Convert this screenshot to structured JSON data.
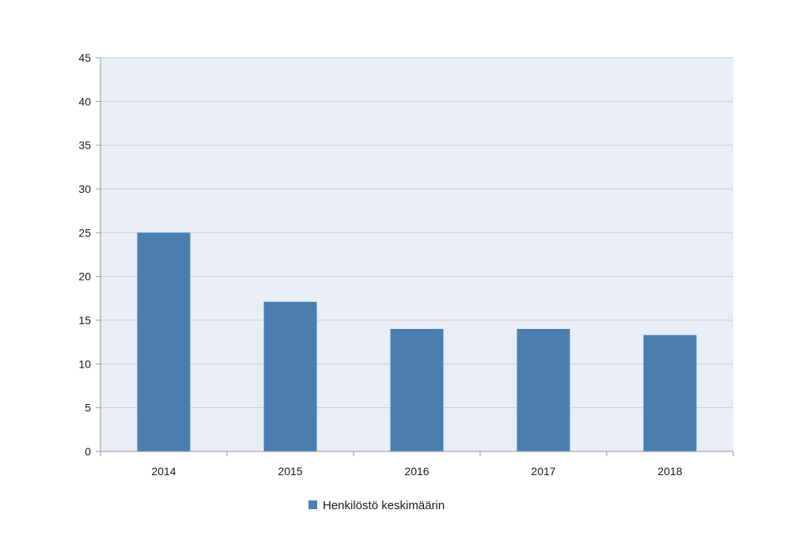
{
  "chart_data": {
    "type": "bar",
    "categories": [
      "2014",
      "2015",
      "2016",
      "2017",
      "2018"
    ],
    "series": [
      {
        "name": "Henkilöstö keskimäärin",
        "values": [
          25,
          17.1,
          14,
          14,
          13.3
        ]
      }
    ],
    "ylim": [
      0,
      45
    ],
    "yticks": [
      0,
      5,
      10,
      15,
      20,
      25,
      30,
      35,
      40,
      45
    ],
    "grid": true,
    "legend": "bottom-center",
    "colors": {
      "bar": "#4a7eb0",
      "plot_background": "#e8edf6",
      "gridline": "#c9cfdb",
      "axis": "#999999"
    }
  }
}
